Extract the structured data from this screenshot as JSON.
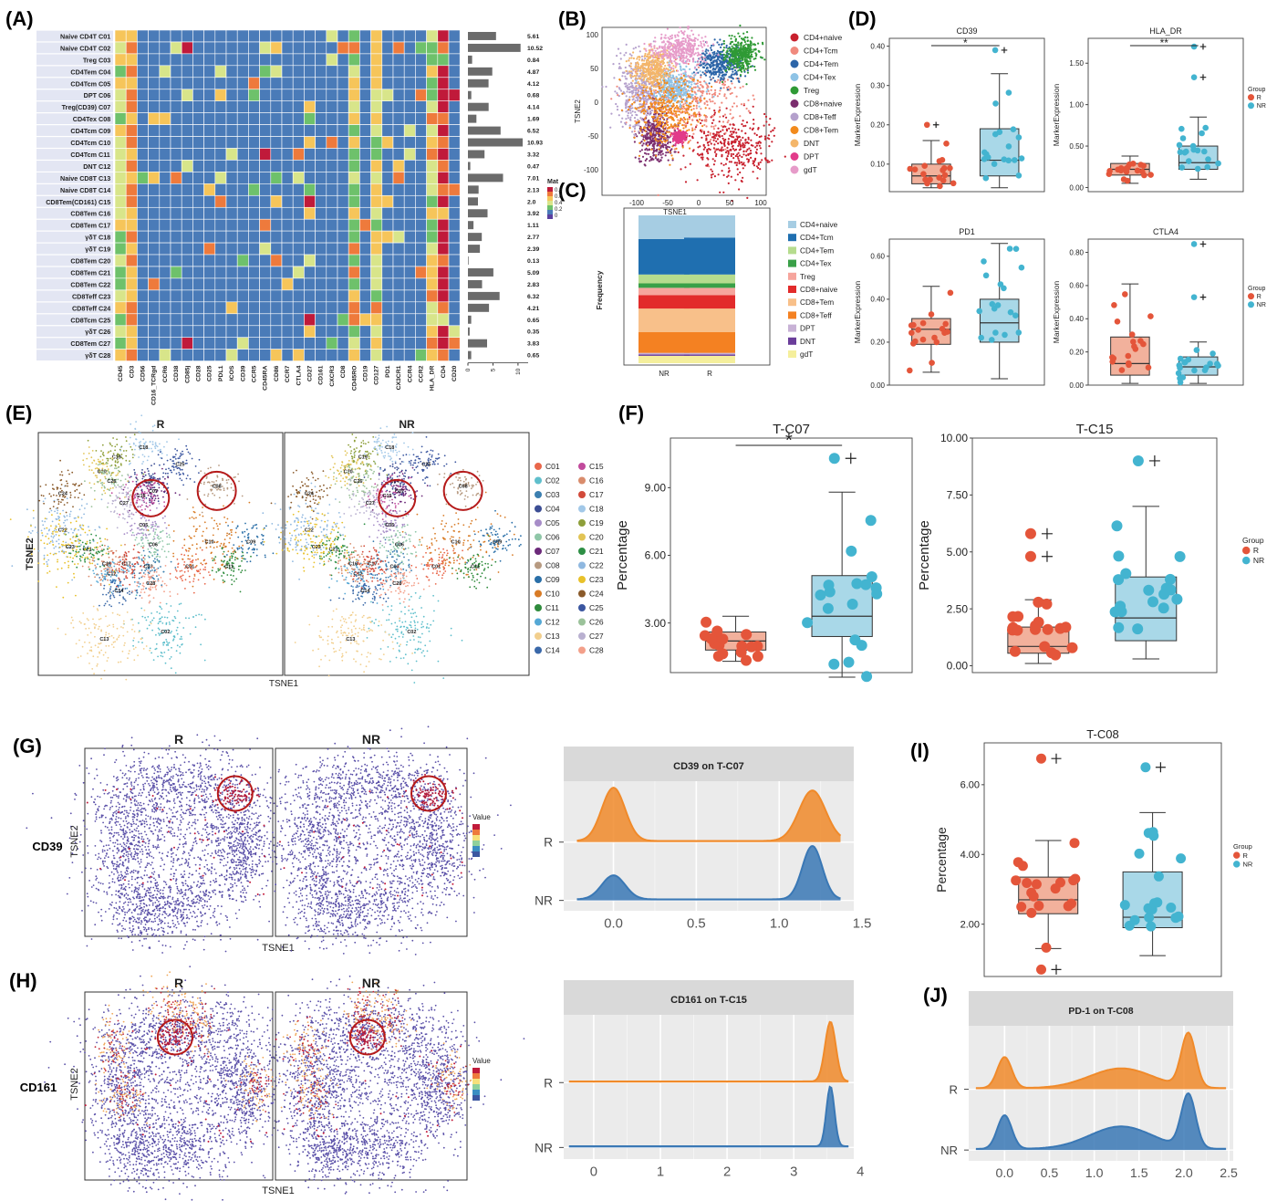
{
  "panel_labels": [
    "(A)",
    "(B)",
    "(C)",
    "(D)",
    "(E)",
    "(F)",
    "(G)",
    "(H)",
    "(I)",
    "(J)"
  ],
  "colors": {
    "R": "#e4553a",
    "NR": "#43b4d0",
    "R_box": "#f2b19c",
    "NR_box": "#a9d8e8",
    "ridge_R": "#f08a2a",
    "ridge_NR": "#3a78b5",
    "heat_low": "#5a3fa0",
    "heat_mid": "#6ec16b",
    "heat_high": "#c01a3a"
  },
  "panelA": {
    "row_labels": [
      [
        "Naive CD4T",
        "C01"
      ],
      [
        "Naive CD4T",
        "C02"
      ],
      [
        "Treg",
        "C03"
      ],
      [
        "CD4Tem",
        "C04"
      ],
      [
        "CD4Tcm",
        "C05"
      ],
      [
        "DPT",
        "C06"
      ],
      [
        "Treg(CD39)",
        "C07"
      ],
      [
        "CD4Tex",
        "C08"
      ],
      [
        "CD4Tcm",
        "C09"
      ],
      [
        "CD4Tcm",
        "C10"
      ],
      [
        "CD4Tcm",
        "C11"
      ],
      [
        "DNT",
        "C12"
      ],
      [
        "Naive CD8T",
        "C13"
      ],
      [
        "Naive CD8T",
        "C14"
      ],
      [
        "CD8Tem(CD161)",
        "C15"
      ],
      [
        "CD8Tem",
        "C16"
      ],
      [
        "CD8Tem",
        "C17"
      ],
      [
        "γδT",
        "C18"
      ],
      [
        "γδT",
        "C19"
      ],
      [
        "CD8Tem",
        "C20"
      ],
      [
        "CD8Tem",
        "C21"
      ],
      [
        "CD8Tem",
        "C22"
      ],
      [
        "CD8Teff",
        "C23"
      ],
      [
        "CD8Teff",
        "C24"
      ],
      [
        "CD8Tcm",
        "C25"
      ],
      [
        "γδT",
        "C26"
      ],
      [
        "CD8Tem",
        "C27"
      ],
      [
        "γδT",
        "C28"
      ]
    ],
    "col_labels": [
      "CD45",
      "CD3",
      "CD56",
      "CD16_TCRgd",
      "CCR6",
      "CD38",
      "CD85j",
      "CD28",
      "CD25",
      "PDL1",
      "ICOS",
      "CD39",
      "CCR5",
      "CD45RA",
      "CD86",
      "CCR7",
      "CTLA4",
      "CD27",
      "CD161",
      "CXCR3",
      "CD8",
      "CD45RO",
      "CD19",
      "CD127",
      "PD1",
      "CX3CR1",
      "CCR4",
      "CCR2",
      "HLA_DR",
      "CD4",
      "CD20"
    ],
    "bar_values": [
      5.61,
      10.52,
      0.84,
      4.87,
      4.12,
      0.68,
      4.14,
      1.69,
      6.52,
      10.93,
      3.32,
      0.47,
      7.01,
      2.13,
      2.0,
      3.92,
      1.11,
      2.77,
      2.39,
      0.13,
      5.09,
      2.83,
      6.32,
      4.21,
      0.65,
      0.35,
      3.83,
      0.65
    ],
    "bar_value_labels": [
      "5.61",
      "10.52",
      "0.84",
      "4.87",
      "4.12",
      "0.68",
      "4.14",
      "1.69",
      "6.52",
      "10.93",
      "3.32",
      "0.47",
      "7.01",
      "2.13",
      "2.0",
      "3.92",
      "1.11",
      "2.77",
      "2.39",
      "0.13",
      "5.09",
      "2.83",
      "6.32",
      "4.21",
      "0.65",
      "0.35",
      "3.83",
      "0.65"
    ],
    "bar_ticks": [
      "0",
      "5",
      "10"
    ],
    "legend_title": "Mat",
    "legend_ticks": [
      "0.8",
      "0.6",
      "0.4",
      "0.2",
      "0"
    ]
  },
  "panelB": {
    "xlabel": "TSNE1",
    "ylabel": "TSNE2",
    "xticks": [
      "-100",
      "-50",
      "0",
      "50",
      "100"
    ],
    "yticks": [
      "100",
      "50",
      "0",
      "-50",
      "-100"
    ],
    "legend": [
      [
        "CD4+naive",
        "#c8202d"
      ],
      [
        "CD4+Tcm",
        "#f08a7e"
      ],
      [
        "CD4+Tem",
        "#2c65a8"
      ],
      [
        "CD4+Tex",
        "#8ec3e6"
      ],
      [
        "Treg",
        "#2f9a35"
      ],
      [
        "CD8+naive",
        "#7b2d6e"
      ],
      [
        "CD8+Teff",
        "#b4a0cc"
      ],
      [
        "CD8+Tem",
        "#f28a1c"
      ],
      [
        "DNT",
        "#f4b66a"
      ],
      [
        "DPT",
        "#e23b8a"
      ],
      [
        "gdT",
        "#e69bc9"
      ]
    ]
  },
  "panelC": {
    "ylabel": "Frequency",
    "categories": [
      "NR",
      "R"
    ],
    "legend": [
      [
        "CD4+naive",
        "#a6cde3"
      ],
      [
        "CD4+Tcm",
        "#1f6fb0"
      ],
      [
        "CD4+Tem",
        "#b6dc8e"
      ],
      [
        "CD4+Tex",
        "#3aa048"
      ],
      [
        "Treg",
        "#f6a59d"
      ],
      [
        "CD8+naive",
        "#e22b2b"
      ],
      [
        "CD8+Tem",
        "#f8c08a"
      ],
      [
        "CD8+Teff",
        "#f48122"
      ],
      [
        "DPT",
        "#c8b2d6"
      ],
      [
        "DNT",
        "#6a3d9a"
      ],
      [
        "gdT",
        "#f5ef9c"
      ]
    ],
    "stack_bottom_to_top": [
      "gdT",
      "DNT",
      "DPT",
      "CD8+Teff",
      "CD8+Tem",
      "CD8+naive",
      "Treg",
      "CD4+Tex",
      "CD4+Tem",
      "CD4+Tcm",
      "CD4+naive"
    ],
    "NR": [
      0.05,
      0.01,
      0.01,
      0.14,
      0.16,
      0.09,
      0.05,
      0.03,
      0.06,
      0.24,
      0.16
    ],
    "R": [
      0.05,
      0.01,
      0.01,
      0.14,
      0.16,
      0.09,
      0.05,
      0.03,
      0.06,
      0.25,
      0.15
    ]
  },
  "panelD": {
    "ylabel": "MarkerExpression",
    "legend_title": "Group",
    "legend_items": [
      "R",
      "NR"
    ],
    "plots": [
      {
        "title": "CD39",
        "yticks": [
          "0.10",
          "0.20",
          "0.30",
          "0.40"
        ],
        "ylim": [
          0.03,
          0.42
        ],
        "sig": "*",
        "R": {
          "q1": 0.05,
          "median": 0.07,
          "q3": 0.1,
          "low": 0.04,
          "high": 0.16,
          "out": [
            0.2
          ]
        },
        "NR": {
          "q1": 0.07,
          "median": 0.11,
          "q3": 0.19,
          "low": 0.04,
          "high": 0.33,
          "out": [
            0.39
          ]
        }
      },
      {
        "title": "HLA_DR",
        "yticks": [
          "0.00",
          "0.50",
          "1.00",
          "1.50"
        ],
        "ylim": [
          -0.05,
          1.8
        ],
        "sig": "**",
        "R": {
          "q1": 0.15,
          "median": 0.22,
          "q3": 0.29,
          "low": 0.05,
          "high": 0.38,
          "out": []
        },
        "NR": {
          "q1": 0.22,
          "median": 0.3,
          "q3": 0.5,
          "low": 0.1,
          "high": 0.85,
          "out": [
            1.33,
            1.7
          ]
        }
      },
      {
        "title": "PD1",
        "yticks": [
          "0.00",
          "0.20",
          "0.40",
          "0.60"
        ],
        "ylim": [
          0.0,
          0.68
        ],
        "sig": "",
        "R": {
          "q1": 0.19,
          "median": 0.26,
          "q3": 0.31,
          "low": 0.06,
          "high": 0.46,
          "out": []
        },
        "NR": {
          "q1": 0.2,
          "median": 0.29,
          "q3": 0.4,
          "low": 0.03,
          "high": 0.66,
          "out": []
        }
      },
      {
        "title": "CTLA4",
        "yticks": [
          "0.00",
          "0.20",
          "0.40",
          "0.60",
          "0.80"
        ],
        "ylim": [
          0.0,
          0.88
        ],
        "sig": "",
        "R": {
          "q1": 0.06,
          "median": 0.13,
          "q3": 0.29,
          "low": 0.01,
          "high": 0.61,
          "out": []
        },
        "NR": {
          "q1": 0.06,
          "median": 0.11,
          "q3": 0.17,
          "low": 0.01,
          "high": 0.26,
          "out": [
            0.53,
            0.85
          ]
        }
      }
    ]
  },
  "panelE": {
    "titles": [
      "R",
      "NR"
    ],
    "xlabel": "TSNE1",
    "ylabel": "TSNE2",
    "legend": [
      [
        "C01",
        "#e9674b"
      ],
      [
        "C02",
        "#5fbfcc"
      ],
      [
        "C03",
        "#3c7fb0"
      ],
      [
        "C04",
        "#3b4d94"
      ],
      [
        "C05",
        "#a78dc8"
      ],
      [
        "C06",
        "#8fc7a8"
      ],
      [
        "C07",
        "#6c2a7a"
      ],
      [
        "C08",
        "#b79a81"
      ],
      [
        "C09",
        "#2a6fa8"
      ],
      [
        "C10",
        "#d87b25"
      ],
      [
        "C11",
        "#2f8b3c"
      ],
      [
        "C12",
        "#55a8d5"
      ],
      [
        "C13",
        "#f2cf8e"
      ],
      [
        "C14",
        "#3a68a9"
      ],
      [
        "C15",
        "#c14a9c"
      ],
      [
        "C16",
        "#d98c6c"
      ],
      [
        "C17",
        "#d24a3a"
      ],
      [
        "C18",
        "#a2c8e8"
      ],
      [
        "C19",
        "#8e9f3a"
      ],
      [
        "C20",
        "#e2c455"
      ],
      [
        "C21",
        "#2d8f45"
      ],
      [
        "C22",
        "#8fb8e0"
      ],
      [
        "C23",
        "#e8c12a"
      ],
      [
        "C24",
        "#8a5a2a"
      ],
      [
        "C25",
        "#3b56a0"
      ],
      [
        "C26",
        "#9bc29a"
      ],
      [
        "C27",
        "#b9b0d0"
      ],
      [
        "C28",
        "#f3a08a"
      ]
    ]
  },
  "panelF": {
    "ylabel": "Percentage",
    "legend_title": "Group",
    "legend_items": [
      "R",
      "NR"
    ],
    "plots": [
      {
        "title": "T-C07",
        "yticks": [
          "3.00",
          "6.00",
          "9.00"
        ],
        "ylim": [
          0.8,
          11.2
        ],
        "sig": "*",
        "R": {
          "q1": 1.8,
          "median": 2.2,
          "q3": 2.6,
          "low": 1.3,
          "high": 3.3,
          "out": []
        },
        "NR": {
          "q1": 2.4,
          "median": 3.3,
          "q3": 5.1,
          "low": 0.6,
          "high": 8.8,
          "out": [
            10.3
          ]
        }
      },
      {
        "title": "T-C15",
        "yticks": [
          "0.00",
          "2.50",
          "5.00",
          "7.50",
          "10.00"
        ],
        "ylim": [
          -0.3,
          10.0
        ],
        "sig": "",
        "R": {
          "q1": 0.55,
          "median": 0.85,
          "q3": 1.7,
          "low": 0.1,
          "high": 2.9,
          "out": [
            4.8,
            5.8
          ]
        },
        "NR": {
          "q1": 1.1,
          "median": 2.1,
          "q3": 3.9,
          "low": 0.3,
          "high": 7.0,
          "out": [
            9.0
          ]
        }
      }
    ]
  },
  "panelG": {
    "row_label": "CD39",
    "titles": [
      "R",
      "NR"
    ],
    "xlabel": "TSNE1",
    "ylabel": "TSNE2",
    "legend_title": "Value",
    "ridge": {
      "title": "CD39 on T-C07",
      "rows": [
        "R",
        "NR"
      ],
      "xticks": [
        "0.0",
        "0.5",
        "1.0",
        "1.5"
      ],
      "xlim": [
        -0.3,
        1.45
      ],
      "R_peaks": [
        [
          0.0,
          0.07,
          0.95
        ],
        [
          1.2,
          0.08,
          0.9
        ]
      ],
      "NR_peaks": [
        [
          0.0,
          0.07,
          0.45
        ],
        [
          1.2,
          0.06,
          1.0
        ]
      ]
    }
  },
  "panelH": {
    "row_label": "CD161",
    "titles": [
      "R",
      "NR"
    ],
    "xlabel": "TSNE1",
    "ylabel": "TSNE2",
    "legend_title": "Value",
    "ridge": {
      "title": "CD161 on T-C15",
      "rows": [
        "R",
        "NR"
      ],
      "xticks": [
        "0",
        "1",
        "2",
        "3",
        "4"
      ],
      "xlim": [
        -0.45,
        3.9
      ],
      "R_peaks": [
        [
          3.55,
          0.08,
          1.0
        ]
      ],
      "NR_peaks": [
        [
          3.55,
          0.06,
          1.0
        ]
      ]
    }
  },
  "panelI": {
    "title": "T-C08",
    "ylabel": "Percentage",
    "yticks": [
      "2.00",
      "4.00",
      "6.00"
    ],
    "ylim": [
      0.5,
      7.2
    ],
    "legend_title": "Group",
    "legend_items": [
      "R",
      "NR"
    ],
    "R": {
      "q1": 2.3,
      "median": 2.7,
      "q3": 3.35,
      "low": 1.3,
      "high": 4.4,
      "out": [
        0.7,
        6.75
      ]
    },
    "NR": {
      "q1": 1.9,
      "median": 2.2,
      "q3": 3.5,
      "low": 1.1,
      "high": 5.2,
      "out": [
        6.5
      ]
    }
  },
  "panelJ": {
    "ridge": {
      "title": "PD-1 on T-C08",
      "rows": [
        "R",
        "NR"
      ],
      "xticks": [
        "0.0",
        "0.5",
        "1.0",
        "1.5",
        "2.0",
        "2.5"
      ],
      "xlim": [
        -0.4,
        2.55
      ],
      "R_peaks": [
        [
          0.0,
          0.08,
          0.55
        ],
        [
          1.3,
          0.35,
          0.35
        ],
        [
          2.05,
          0.08,
          0.95
        ]
      ],
      "NR_peaks": [
        [
          0.0,
          0.08,
          0.6
        ],
        [
          1.3,
          0.35,
          0.4
        ],
        [
          2.05,
          0.08,
          0.95
        ]
      ]
    }
  },
  "chart_data": [
    {
      "type": "heatmap",
      "panel": "(A)",
      "note": "rows C01-C28 vs markers; row bars show values",
      "categories": [
        "C01",
        "C02",
        "C03",
        "C04",
        "C05",
        "C06",
        "C07",
        "C08",
        "C09",
        "C10",
        "C11",
        "C12",
        "C13",
        "C14",
        "C15",
        "C16",
        "C17",
        "C18",
        "C19",
        "C20",
        "C21",
        "C22",
        "C23",
        "C24",
        "C25",
        "C26",
        "C27",
        "C28"
      ],
      "values": [
        5.61,
        10.52,
        0.84,
        4.87,
        4.12,
        0.68,
        4.14,
        1.69,
        6.52,
        10.93,
        3.32,
        0.47,
        7.01,
        2.13,
        2.0,
        3.92,
        1.11,
        2.77,
        2.39,
        0.13,
        5.09,
        2.83,
        6.32,
        4.21,
        0.65,
        0.35,
        3.83,
        0.65
      ]
    },
    {
      "type": "scatter",
      "panel": "(B)",
      "xlabel": "TSNE1",
      "ylabel": "TSNE2"
    },
    {
      "type": "bar",
      "panel": "(C)",
      "categories": [
        "NR",
        "R"
      ],
      "ylabel": "Frequency"
    },
    {
      "type": "scatter",
      "panel": "(D)",
      "ylabel": "MarkerExpression"
    },
    {
      "type": "scatter",
      "panel": "(E)",
      "xlabel": "TSNE1",
      "ylabel": "TSNE2"
    },
    {
      "type": "scatter",
      "panel": "(F)",
      "ylabel": "Percentage"
    },
    {
      "type": "area",
      "panel": "(G)",
      "title": "CD39 on T-C07"
    },
    {
      "type": "area",
      "panel": "(H)",
      "title": "CD161 on T-C15"
    },
    {
      "type": "scatter",
      "panel": "(I)",
      "title": "T-C08",
      "ylabel": "Percentage"
    },
    {
      "type": "area",
      "panel": "(J)",
      "title": "PD-1 on T-C08"
    }
  ]
}
